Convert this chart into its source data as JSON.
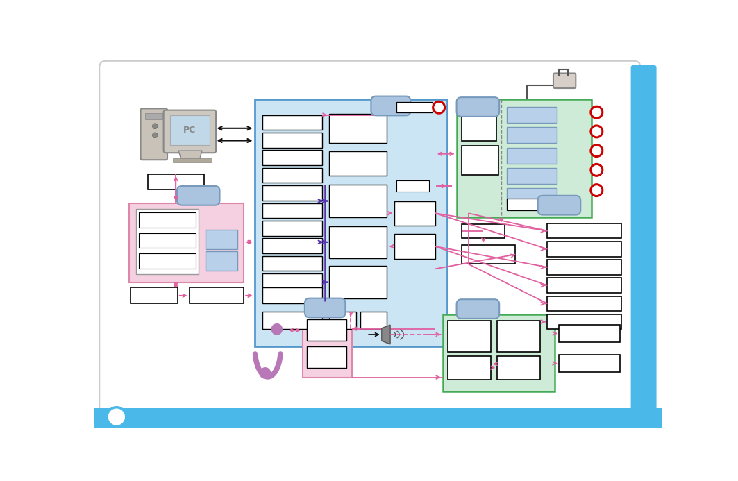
{
  "bg_color": "#ffffff",
  "main_blue_fc": "#cce5f5",
  "main_blue_ec": "#5599cc",
  "pink_fc": "#f5d0e0",
  "pink_ec": "#dd88aa",
  "green_fc": "#ceebd8",
  "green_ec": "#44aa55",
  "blue_box_fc": "#b8d0ea",
  "blue_box_ec": "#7799bb",
  "stadium_fc": "#aac4e0",
  "stadium_ec": "#7799bb",
  "pink_arrow": "#e060a0",
  "dark_arrow": "#111111",
  "purple_arrow": "#5533aa",
  "red_circ_ec": "#cc0000",
  "sidebar_blue": "#4ab8e8",
  "white": "#ffffff",
  "black": "#000000",
  "gray_line": "#888888"
}
